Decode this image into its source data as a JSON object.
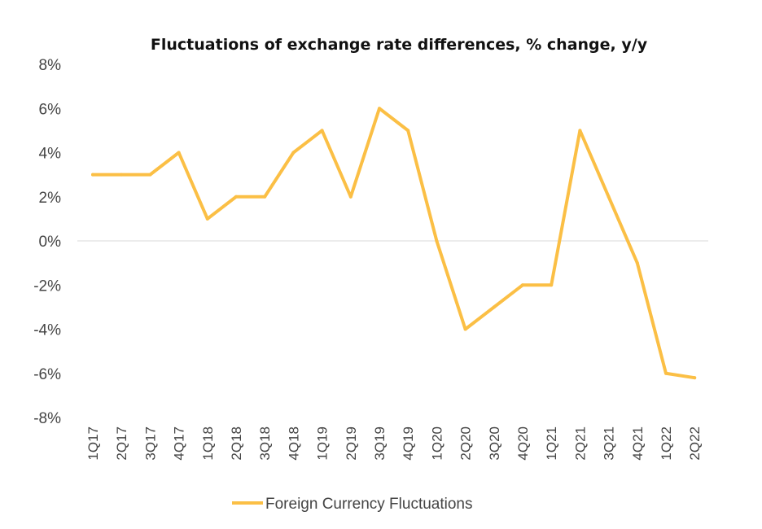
{
  "chart_data": {
    "type": "line",
    "title": "Fluctuations of exchange rate differences, % change, y/y",
    "xlabel": "",
    "ylabel": "",
    "ylim": [
      -8,
      8
    ],
    "yticks": [
      "8%",
      "6%",
      "4%",
      "2%",
      "0%",
      "-2%",
      "-4%",
      "-6%",
      "-8%"
    ],
    "ytick_values": [
      8,
      6,
      4,
      2,
      0,
      -2,
      -4,
      -6,
      -8
    ],
    "categories": [
      "1Q17",
      "2Q17",
      "3Q17",
      "4Q17",
      "1Q18",
      "2Q18",
      "3Q18",
      "4Q18",
      "1Q19",
      "2Q19",
      "3Q19",
      "4Q19",
      "1Q20",
      "2Q20",
      "3Q20",
      "4Q20",
      "1Q21",
      "2Q21",
      "3Q21",
      "4Q21",
      "1Q22",
      "2Q22"
    ],
    "series": [
      {
        "name": "Foreign Currency Fluctuations",
        "color": "#FBBF45",
        "values": [
          3,
          3,
          3,
          4,
          1,
          2,
          2,
          4,
          5,
          2,
          6,
          5,
          0,
          -4,
          -3,
          -2,
          -2,
          5,
          2,
          -1,
          -6,
          -6.2
        ]
      }
    ],
    "grid": false,
    "zero_line": true,
    "legend_position": "bottom"
  }
}
